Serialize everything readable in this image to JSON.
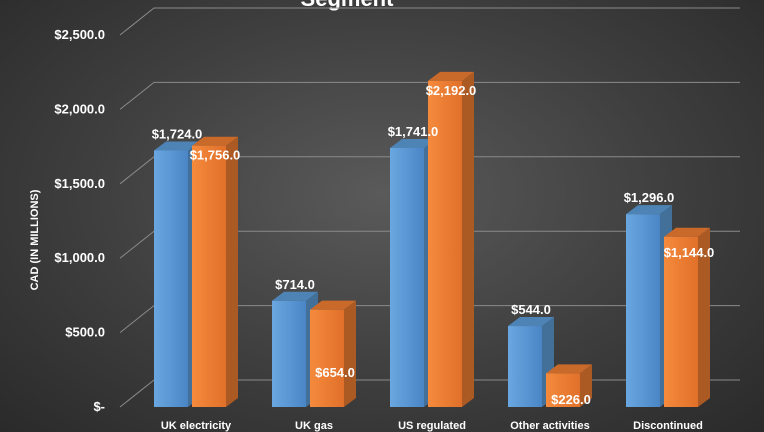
{
  "chart_data": {
    "type": "bar",
    "title": "Segment",
    "ylabel": "CAD (IN MILLIONS)",
    "ylim": [
      0,
      2500
    ],
    "yticks": [
      0,
      500,
      1000,
      1500,
      2000,
      2500
    ],
    "ytick_labels": [
      "$-",
      "$500.0",
      "$1,000.0",
      "$1,500.0",
      "$2,000.0",
      "$2,500.0"
    ],
    "categories": [
      "UK electricity",
      "UK gas",
      "US regulated",
      "Other activities",
      "Discontinued"
    ],
    "series": [
      {
        "color": "#5b9bd5",
        "values": [
          1724.0,
          714.0,
          1741.0,
          544.0,
          1296.0
        ],
        "labels": [
          "$1,724.0",
          "$714.0",
          "$1,741.0",
          "$544.0",
          "$1,296.0"
        ]
      },
      {
        "color": "#ed7d31",
        "values": [
          1756.0,
          654.0,
          2192.0,
          226.0,
          1144.0
        ],
        "labels": [
          "$1,756.0",
          "$654.0",
          "$2,192.0",
          "$226.0",
          "$1,144.0"
        ]
      }
    ],
    "grid": true,
    "style": "3d-clustered-column"
  }
}
